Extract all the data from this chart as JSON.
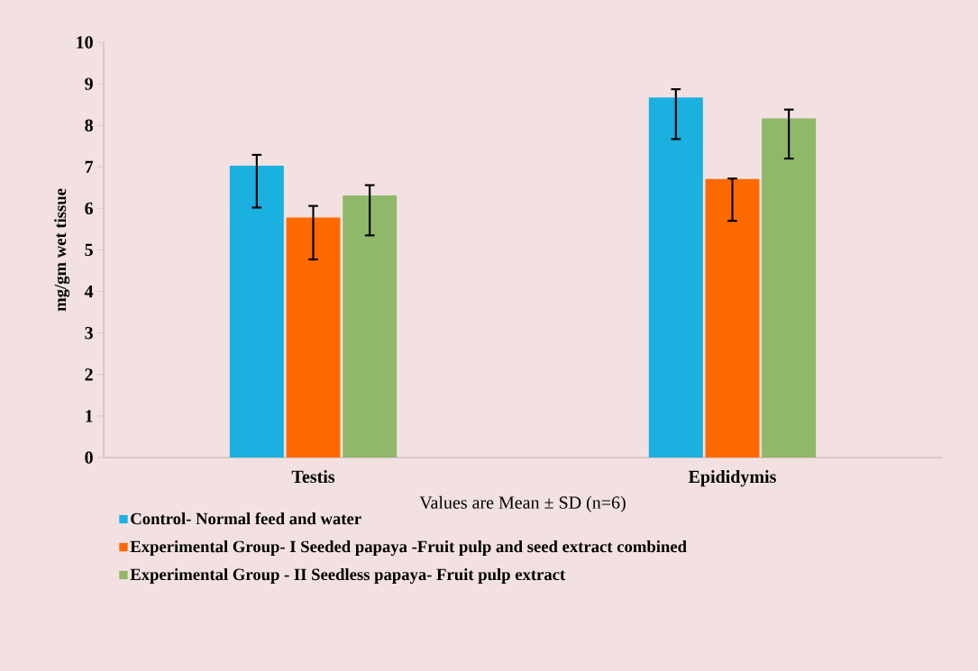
{
  "chart_data": {
    "type": "bar",
    "xlabel": "Values are Mean ± SD (n=6)",
    "ylabel": "mg/gm wet tissue",
    "categories": [
      "Testis",
      "Epididymis"
    ],
    "series": [
      {
        "name": "Control- Normal feed and water",
        "color": "#1ab0e0",
        "values": [
          7.03,
          8.67
        ],
        "errors": [
          [
            6.02,
            7.29
          ],
          [
            7.67,
            8.87
          ]
        ]
      },
      {
        "name": "Experimental Group- I  Seeded papaya -Fruit pulp and seed extract combined",
        "color": "#ff6a00",
        "values": [
          5.78,
          6.71
        ],
        "errors": [
          [
            4.77,
            6.06
          ],
          [
            5.7,
            6.72
          ]
        ]
      },
      {
        "name": "Experimental Group - II  Seedless papaya- Fruit pulp extract",
        "color": "#8fb868",
        "values": [
          6.31,
          8.17
        ],
        "errors": [
          [
            5.35,
            6.56
          ],
          [
            7.2,
            8.38
          ]
        ]
      }
    ],
    "ylim": [
      0,
      10
    ],
    "yticks": [
      0,
      1,
      2,
      3,
      4,
      5,
      6,
      7,
      8,
      9,
      10
    ],
    "grid": false,
    "legend": "bottom"
  }
}
